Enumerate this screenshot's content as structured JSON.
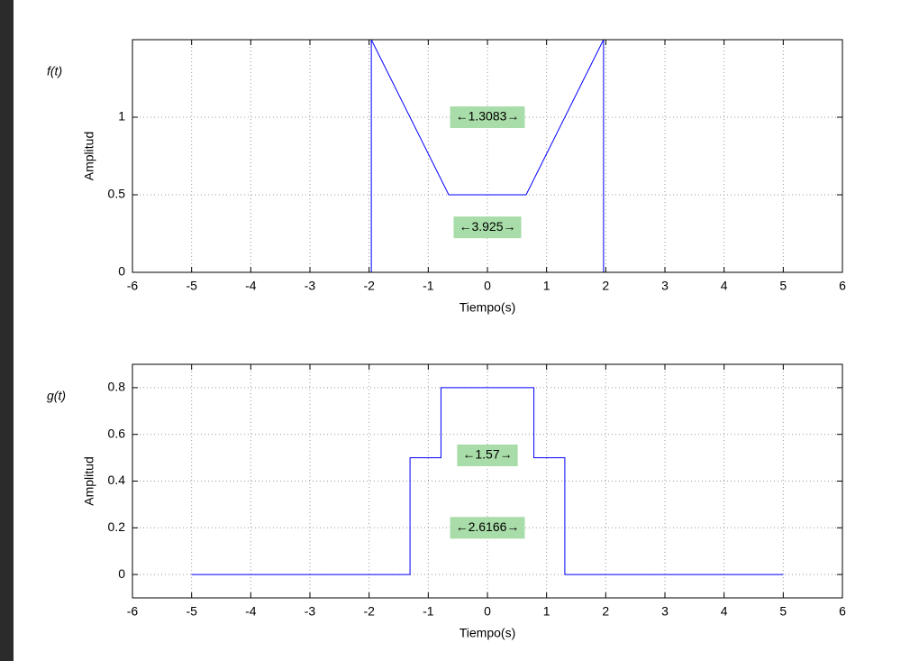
{
  "chart_data": [
    {
      "type": "line",
      "title": "f(t)",
      "xlabel": "Tiempo(s)",
      "ylabel": "Amplitud",
      "x": [
        -1.9625,
        -1.9625,
        -0.654,
        0.654,
        1.9625,
        1.9625
      ],
      "values": [
        0,
        1.5,
        0.5,
        0.5,
        1.5,
        0
      ],
      "color": "#0000ff",
      "xlim": [
        -6,
        6
      ],
      "xticks": [
        -6,
        -5,
        -4,
        -3,
        -2,
        -1,
        0,
        1,
        2,
        3,
        4,
        5,
        6
      ],
      "ylim": [
        0,
        1.5
      ],
      "yticks": [
        0,
        0.5,
        1
      ],
      "grid": true,
      "annotations": [
        {
          "text": "←1.3083→",
          "x": 0,
          "y": 1.0
        },
        {
          "text": "←3.925→",
          "x": 0,
          "y": 0.29
        }
      ]
    },
    {
      "type": "line",
      "title": "g(t)",
      "xlabel": "Tiempo(s)",
      "ylabel": "Amplitud",
      "x": [
        -5,
        -1.3083,
        -1.3083,
        -0.785,
        -0.785,
        0.785,
        0.785,
        1.3083,
        1.3083,
        5
      ],
      "values": [
        0,
        0,
        0.5,
        0.5,
        0.8,
        0.8,
        0.5,
        0.5,
        0,
        0
      ],
      "color": "#0000ff",
      "xlim": [
        -6,
        6
      ],
      "xticks": [
        -6,
        -5,
        -4,
        -3,
        -2,
        -1,
        0,
        1,
        2,
        3,
        4,
        5,
        6
      ],
      "ylim": [
        -0.1,
        0.9
      ],
      "yticks": [
        0,
        0.2,
        0.4,
        0.6,
        0.8
      ],
      "grid": true,
      "annotations": [
        {
          "text": "←1.57→",
          "x": 0,
          "y": 0.51
        },
        {
          "text": "←2.6166→",
          "x": 0,
          "y": 0.2
        }
      ]
    }
  ]
}
